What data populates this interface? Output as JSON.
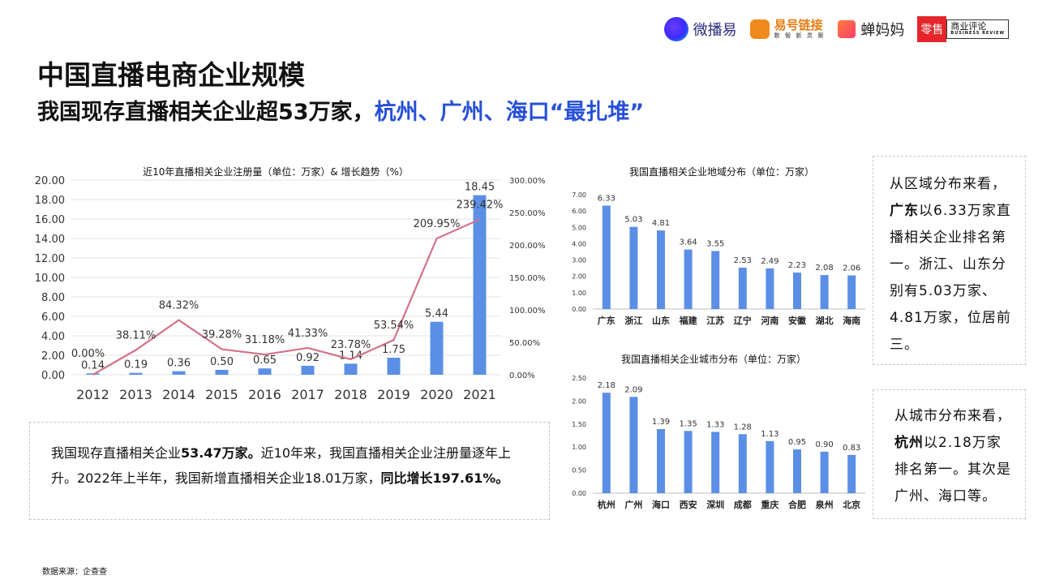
{
  "logos": {
    "weiboyi": "微播易",
    "yihao": "易号链接",
    "yihao_sub": "数 智 新 灵 案",
    "chanmama": "蝉妈妈",
    "lingshou_red": "零售",
    "lingshou_main": "商业评论",
    "lingshou_sub": "BUSINESS REVIEW"
  },
  "header": {
    "title": "中国直播电商企业规模",
    "subtitle_prefix": "我国现存直播相关企业超53万家，",
    "subtitle_highlight": "杭州、广州、海口“最扎堆”"
  },
  "notes": {
    "left": {
      "p1_prefix": "我国现存直播相关企业",
      "p1_bold": "53.47万家。",
      "p1_rest": "近10年来，我国直播相关企业注册量逐年上升。2022年上半年，我国新增直播相关企业18.01万家，",
      "p1_bold2": "同比增长197.61%。"
    },
    "right_top": {
      "line1": "从区域分布来看，",
      "bold": "广东",
      "rest": "以6.33万家直播相关企业排名第一。浙江、山东分别有5.03万家、4.81万家，位居前三。"
    },
    "right_bottom": {
      "line1": "从城市分布来看，",
      "bold": "杭州",
      "rest": "以2.18万家排名第一。其次是广州、海口等。"
    }
  },
  "source": "数据来源：企查查",
  "chart_data": [
    {
      "type": "bar",
      "title": "近10年直播相关企业注册量（单位：万家）& 增长趋势（%）",
      "categories": [
        "2012",
        "2013",
        "2014",
        "2015",
        "2016",
        "2017",
        "2018",
        "2019",
        "2020",
        "2021"
      ],
      "series": [
        {
          "values": [
            0.14,
            0.19,
            0.36,
            0.5,
            0.65,
            0.92,
            1.14,
            1.75,
            5.44,
            18.45
          ],
          "labels": [
            "0.14",
            "0.19",
            "0.36",
            "0.50",
            "0.65",
            "0.92",
            "1.14",
            "1.75",
            "5.44",
            "18.45"
          ],
          "color": "#5b8fe6"
        },
        {
          "type": "line",
          "axis": "right",
          "values": [
            0.0,
            38.11,
            84.32,
            39.28,
            31.18,
            41.33,
            23.78,
            53.54,
            209.95,
            239.42
          ],
          "labels": [
            "0.00%",
            "38.11%",
            "84.32%",
            "39.28%",
            "31.18%",
            "41.33%",
            "23.78%",
            "53.54%",
            "209.95%",
            "239.42%"
          ],
          "color": "#d4728a"
        }
      ],
      "ylim": [
        0,
        20
      ],
      "yticks": [
        "0.00",
        "2.00",
        "4.00",
        "6.00",
        "8.00",
        "10.00",
        "12.00",
        "14.00",
        "16.00",
        "18.00",
        "20.00"
      ],
      "y2lim": [
        0,
        300
      ],
      "y2ticks": [
        "0.00%",
        "50.00%",
        "100.00%",
        "150.00%",
        "200.00%",
        "250.00%",
        "300.00%"
      ],
      "grid": true
    },
    {
      "type": "bar",
      "title": "我国直播相关企业地域分布（单位：万家）",
      "categories": [
        "广东",
        "浙江",
        "山东",
        "福建",
        "江苏",
        "辽宁",
        "河南",
        "安徽",
        "湖北",
        "海南"
      ],
      "values": [
        6.33,
        5.03,
        4.81,
        3.64,
        3.55,
        2.53,
        2.49,
        2.23,
        2.08,
        2.06
      ],
      "labels": [
        "6.33",
        "5.03",
        "4.81",
        "3.64",
        "3.55",
        "2.53",
        "2.49",
        "2.23",
        "2.08",
        "2.06"
      ],
      "ylim": [
        0,
        7
      ],
      "yticks": [
        "0.00",
        "1.00",
        "2.00",
        "3.00",
        "4.00",
        "5.00",
        "6.00",
        "7.00"
      ],
      "color": "#5b8fe6",
      "grid": false
    },
    {
      "type": "bar",
      "title": "我国直播相关企业城市分布（单位：万家）",
      "categories": [
        "杭州",
        "广州",
        "海口",
        "西安",
        "深圳",
        "成都",
        "重庆",
        "合肥",
        "泉州",
        "北京"
      ],
      "values": [
        2.18,
        2.09,
        1.39,
        1.35,
        1.33,
        1.28,
        1.13,
        0.95,
        0.9,
        0.83
      ],
      "labels": [
        "2.18",
        "2.09",
        "1.39",
        "1.35",
        "1.33",
        "1.28",
        "1.13",
        "0.95",
        "0.90",
        "0.83"
      ],
      "ylim": [
        0,
        2.5
      ],
      "yticks": [
        "0.00",
        "0.50",
        "1.00",
        "1.50",
        "2.00",
        "2.50"
      ],
      "color": "#5b8fe6",
      "grid": false
    }
  ]
}
